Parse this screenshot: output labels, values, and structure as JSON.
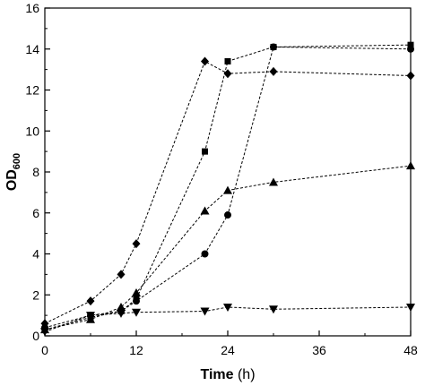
{
  "chart_data": {
    "type": "line",
    "title": "",
    "xlabel": "Time",
    "xlabel_unit": "(h)",
    "ylabel_main": "OD",
    "ylabel_sub": "600",
    "xlim": [
      0,
      48
    ],
    "ylim": [
      0,
      16
    ],
    "x_ticks": [
      "0",
      "12",
      "24",
      "36",
      "48"
    ],
    "y_ticks": [
      "0",
      "2",
      "4",
      "6",
      "8",
      "10",
      "12",
      "14",
      "16"
    ],
    "grid": false,
    "legend": "none",
    "line_color": "#000000",
    "line_style": "dashed",
    "series": [
      {
        "marker": "square",
        "points": [
          [
            0,
            0.3
          ],
          [
            6,
            0.9
          ],
          [
            10,
            1.2
          ],
          [
            12,
            1.8
          ],
          [
            21,
            9.0
          ],
          [
            24,
            13.4
          ],
          [
            30,
            14.1
          ],
          [
            48,
            14.2
          ]
        ]
      },
      {
        "marker": "circle",
        "points": [
          [
            0,
            0.4
          ],
          [
            6,
            1.0
          ],
          [
            10,
            1.2
          ],
          [
            12,
            1.7
          ],
          [
            21,
            4.0
          ],
          [
            24,
            5.9
          ],
          [
            30,
            14.1
          ],
          [
            48,
            14.0
          ]
        ]
      },
      {
        "marker": "triangle-up",
        "points": [
          [
            0,
            0.3
          ],
          [
            6,
            0.8
          ],
          [
            10,
            1.4
          ],
          [
            12,
            2.1
          ],
          [
            21,
            6.1
          ],
          [
            24,
            7.1
          ],
          [
            30,
            7.5
          ],
          [
            48,
            8.3
          ]
        ]
      },
      {
        "marker": "triangle-down",
        "points": [
          [
            0,
            0.2
          ],
          [
            6,
            1.0
          ],
          [
            10,
            1.1
          ],
          [
            12,
            1.15
          ],
          [
            21,
            1.2
          ],
          [
            24,
            1.4
          ],
          [
            30,
            1.3
          ],
          [
            48,
            1.4
          ]
        ]
      },
      {
        "marker": "diamond",
        "points": [
          [
            0,
            0.6
          ],
          [
            6,
            1.7
          ],
          [
            10,
            3.0
          ],
          [
            12,
            4.5
          ],
          [
            21,
            13.4
          ],
          [
            24,
            12.8
          ],
          [
            30,
            12.9
          ],
          [
            48,
            12.7
          ]
        ]
      }
    ]
  }
}
